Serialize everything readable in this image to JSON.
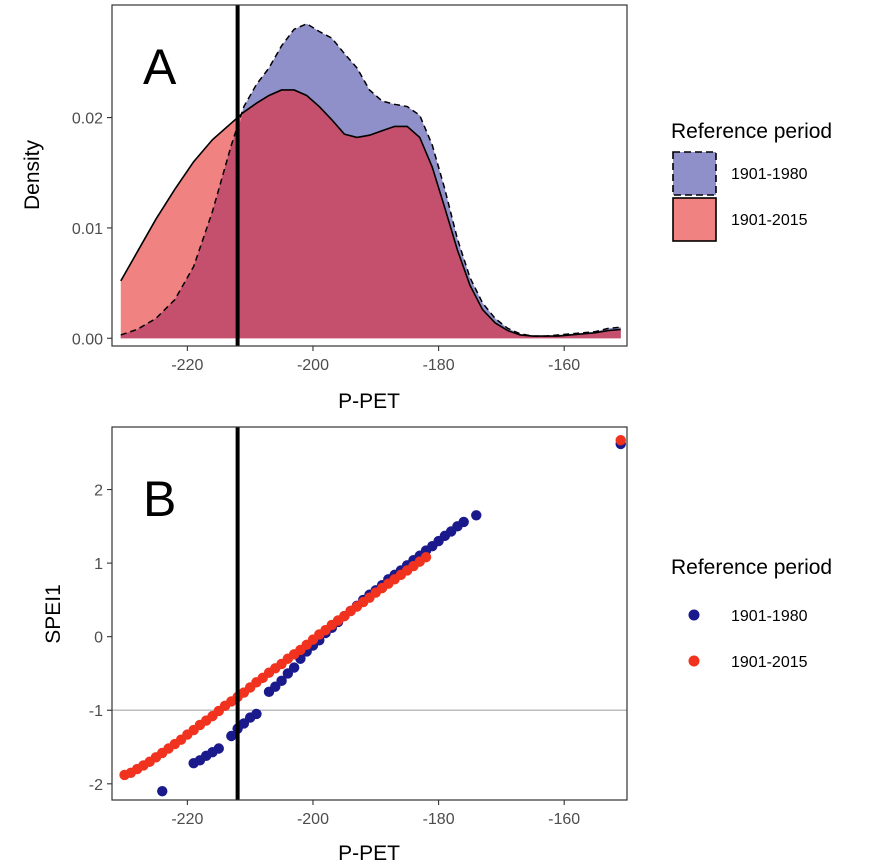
{
  "colors": {
    "period_1901_1980_fill": "#8f8fc9",
    "period_1901_2015_fill": "#f08282",
    "overlap_fill": "#c4506e",
    "point_1901_1980": "#1a1a8c",
    "point_1901_2015": "#f0321e",
    "threshold_line": "#000000",
    "hline": "#bdbdbd"
  },
  "chart_data": [
    {
      "type": "area",
      "panel_label": "A",
      "xlabel": "P-PET",
      "ylabel": "Density",
      "xlim": [
        -232,
        -150
      ],
      "ylim": [
        -0.0007,
        0.0302
      ],
      "xticks": [
        -220,
        -200,
        -180,
        -160
      ],
      "xtick_labels": [
        "-220",
        "-200",
        "-180",
        "-160"
      ],
      "yticks": [
        0.0,
        0.01,
        0.02
      ],
      "ytick_labels": [
        "0.00",
        "0.01",
        "0.02"
      ],
      "vline_x": -212,
      "legend_title": "Reference period",
      "legend_position": "right",
      "series": [
        {
          "name": "1901-1980",
          "line_style": "dashed",
          "x": [
            -230.6,
            -228,
            -225,
            -222,
            -219,
            -216,
            -213,
            -211,
            -209,
            -207,
            -205,
            -203,
            -201,
            -199,
            -197,
            -195,
            -193,
            -191,
            -189,
            -187,
            -185,
            -183,
            -181,
            -179,
            -177,
            -175,
            -173,
            -171,
            -169,
            -167,
            -165,
            -163,
            -161,
            -159,
            -157,
            -155,
            -153,
            -151
          ],
          "y": [
            0.0003,
            0.0008,
            0.0018,
            0.0035,
            0.0065,
            0.0115,
            0.0175,
            0.021,
            0.023,
            0.0245,
            0.0265,
            0.028,
            0.0285,
            0.0278,
            0.0272,
            0.0258,
            0.0245,
            0.0225,
            0.0215,
            0.0212,
            0.021,
            0.0202,
            0.0175,
            0.0135,
            0.009,
            0.0055,
            0.0032,
            0.0018,
            0.0009,
            0.0004,
            0.0002,
            0.0002,
            0.0003,
            0.0004,
            0.0005,
            0.0006,
            0.0009,
            0.001
          ]
        },
        {
          "name": "1901-2015",
          "line_style": "solid",
          "x": [
            -230.6,
            -228,
            -225,
            -222,
            -219,
            -216,
            -213,
            -211,
            -209,
            -207,
            -205,
            -203,
            -201,
            -199,
            -197,
            -195,
            -193,
            -191,
            -189,
            -187,
            -185,
            -183,
            -181,
            -179,
            -177,
            -175,
            -173,
            -171,
            -169,
            -167,
            -165,
            -163,
            -161,
            -159,
            -157,
            -155,
            -153,
            -151
          ],
          "y": [
            0.0052,
            0.0078,
            0.0108,
            0.0135,
            0.016,
            0.018,
            0.0195,
            0.0205,
            0.0213,
            0.022,
            0.0225,
            0.0225,
            0.022,
            0.021,
            0.0198,
            0.0185,
            0.0182,
            0.0184,
            0.0188,
            0.0192,
            0.0192,
            0.0182,
            0.0155,
            0.0118,
            0.008,
            0.0048,
            0.0026,
            0.0014,
            0.0007,
            0.0003,
            0.0002,
            0.0002,
            0.0002,
            0.0003,
            0.0004,
            0.0005,
            0.0007,
            0.0008
          ]
        }
      ]
    },
    {
      "type": "scatter",
      "panel_label": "B",
      "xlabel": "P-PET",
      "ylabel": "SPEI1",
      "xlim": [
        -232,
        -150
      ],
      "ylim": [
        -2.22,
        2.85
      ],
      "xticks": [
        -220,
        -200,
        -180,
        -160
      ],
      "xtick_labels": [
        "-220",
        "-200",
        "-180",
        "-160"
      ],
      "yticks": [
        -2,
        -1,
        0,
        1,
        2
      ],
      "ytick_labels": [
        "-2",
        "-1",
        "0",
        "1",
        "2"
      ],
      "vline_x": -212,
      "hline_y": -1,
      "legend_title": "Reference period",
      "legend_position": "right",
      "series": [
        {
          "name": "1901-1980",
          "x": [
            -224,
            -219,
            -218,
            -217,
            -216,
            -215,
            -213,
            -212,
            -211,
            -210,
            -209,
            -207,
            -206,
            -205,
            -204,
            -203,
            -202,
            -201,
            -200,
            -199,
            -198,
            -197,
            -196,
            -195,
            -194,
            -193,
            -192,
            -191,
            -190,
            -189,
            -188,
            -187,
            -186,
            -185,
            -184,
            -183,
            -182,
            -181,
            -180,
            -179,
            -178,
            -177,
            -176,
            -174,
            -151
          ],
          "y": [
            -2.1,
            -1.72,
            -1.68,
            -1.62,
            -1.57,
            -1.52,
            -1.35,
            -1.25,
            -1.18,
            -1.1,
            -1.05,
            -0.75,
            -0.68,
            -0.6,
            -0.5,
            -0.42,
            -0.3,
            -0.2,
            -0.12,
            -0.05,
            0.05,
            0.12,
            0.2,
            0.28,
            0.35,
            0.42,
            0.5,
            0.57,
            0.63,
            0.7,
            0.78,
            0.84,
            0.9,
            0.97,
            1.04,
            1.1,
            1.17,
            1.23,
            1.3,
            1.37,
            1.43,
            1.5,
            1.56,
            1.65,
            2.62
          ]
        },
        {
          "name": "1901-2015",
          "x": [
            -230,
            -229,
            -228,
            -227,
            -226,
            -225,
            -224,
            -223,
            -222,
            -221,
            -220,
            -219,
            -218,
            -217,
            -216,
            -215,
            -214,
            -213,
            -212,
            -211,
            -210,
            -209,
            -208,
            -207,
            -206,
            -205,
            -204,
            -203,
            -202,
            -201,
            -200,
            -199,
            -198,
            -197,
            -196,
            -195,
            -194,
            -193,
            -192,
            -191,
            -190,
            -189,
            -188,
            -187,
            -186,
            -185,
            -184,
            -183,
            -182,
            -151
          ],
          "y": [
            -1.88,
            -1.85,
            -1.8,
            -1.75,
            -1.7,
            -1.64,
            -1.58,
            -1.52,
            -1.46,
            -1.4,
            -1.33,
            -1.27,
            -1.2,
            -1.14,
            -1.08,
            -1.01,
            -0.94,
            -0.88,
            -0.82,
            -0.76,
            -0.69,
            -0.62,
            -0.56,
            -0.49,
            -0.43,
            -0.37,
            -0.3,
            -0.24,
            -0.18,
            -0.11,
            -0.04,
            0.03,
            0.09,
            0.16,
            0.22,
            0.28,
            0.35,
            0.41,
            0.47,
            0.53,
            0.6,
            0.66,
            0.72,
            0.78,
            0.84,
            0.9,
            0.96,
            1.02,
            1.08,
            2.67
          ]
        }
      ]
    }
  ]
}
